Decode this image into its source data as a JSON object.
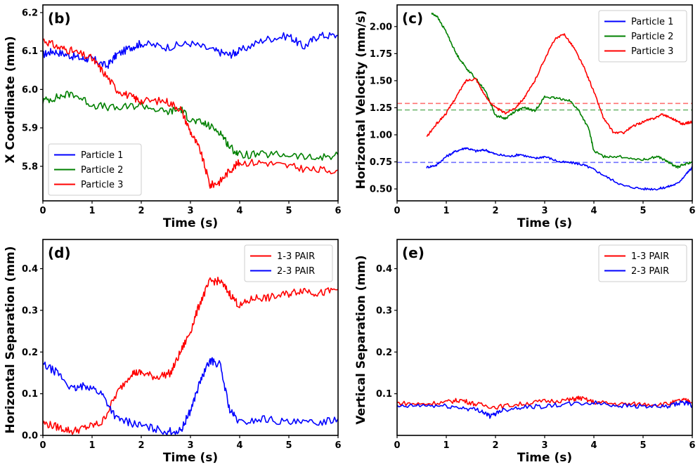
{
  "chart_data": [
    {
      "type": "line",
      "panel_label": "(b)",
      "xlabel": "Time (s)",
      "ylabel": "X Coordinate (mm)",
      "xlim": [
        0,
        6
      ],
      "ylim": [
        5.71,
        6.22
      ],
      "xticks": [
        "0",
        "1",
        "2",
        "3",
        "4",
        "5",
        "6"
      ],
      "yticks": [
        "5.8",
        "5.9",
        "6.0",
        "6.1",
        "6.2"
      ],
      "legend_position": "lower-left",
      "series": [
        {
          "name": "Particle 1",
          "color": "#0000ff",
          "x": [
            0,
            0.2,
            0.5,
            0.8,
            1.0,
            1.3,
            1.5,
            1.8,
            2.0,
            2.5,
            3.0,
            3.5,
            3.8,
            4.0,
            4.5,
            5.0,
            5.3,
            5.6,
            6.0
          ],
          "y": [
            6.09,
            6.1,
            6.09,
            6.08,
            6.08,
            6.06,
            6.09,
            6.11,
            6.12,
            6.11,
            6.12,
            6.1,
            6.09,
            6.1,
            6.13,
            6.14,
            6.11,
            6.14,
            6.14
          ]
        },
        {
          "name": "Particle 2",
          "color": "#008000",
          "x": [
            0,
            0.3,
            0.6,
            1.0,
            1.5,
            2.0,
            2.5,
            2.8,
            3.0,
            3.3,
            3.6,
            3.8,
            4.0,
            4.5,
            5.0,
            5.5,
            6.0
          ],
          "y": [
            5.97,
            5.98,
            5.99,
            5.96,
            5.95,
            5.96,
            5.94,
            5.95,
            5.92,
            5.91,
            5.89,
            5.85,
            5.83,
            5.83,
            5.83,
            5.82,
            5.83
          ]
        },
        {
          "name": "Particle 3",
          "color": "#ff0000",
          "x": [
            0,
            0.3,
            0.6,
            1.0,
            1.2,
            1.5,
            1.8,
            2.0,
            2.5,
            2.8,
            3.0,
            3.2,
            3.4,
            3.6,
            3.8,
            4.0,
            4.5,
            5.0,
            5.5,
            6.0
          ],
          "y": [
            6.13,
            6.11,
            6.1,
            6.08,
            6.05,
            6.0,
            5.98,
            5.97,
            5.97,
            5.95,
            5.89,
            5.84,
            5.75,
            5.76,
            5.79,
            5.81,
            5.81,
            5.8,
            5.79,
            5.79
          ]
        }
      ]
    },
    {
      "type": "line",
      "panel_label": "(c)",
      "xlabel": "Time (s)",
      "ylabel": "Horizontal Velocity (mm/s)",
      "xlim": [
        0,
        6
      ],
      "ylim": [
        0.39,
        2.2
      ],
      "xticks": [
        "0",
        "1",
        "2",
        "3",
        "4",
        "5",
        "6"
      ],
      "yticks": [
        "0.50",
        "0.75",
        "1.00",
        "1.25",
        "1.50",
        "1.75",
        "2.00"
      ],
      "legend_position": "top-right",
      "series": [
        {
          "name": "Particle 1",
          "color": "#0000ff",
          "x": [
            0.6,
            0.8,
            1.0,
            1.2,
            1.4,
            1.6,
            1.8,
            2.0,
            2.3,
            2.5,
            2.8,
            3.0,
            3.3,
            3.6,
            3.8,
            4.0,
            4.3,
            4.6,
            5.0,
            5.3,
            5.5,
            5.7,
            5.9,
            6.0
          ],
          "y": [
            0.7,
            0.72,
            0.8,
            0.85,
            0.88,
            0.85,
            0.86,
            0.82,
            0.8,
            0.82,
            0.78,
            0.8,
            0.75,
            0.74,
            0.72,
            0.68,
            0.6,
            0.53,
            0.5,
            0.5,
            0.52,
            0.55,
            0.65,
            0.7
          ]
        },
        {
          "name": "Particle 2",
          "color": "#008000",
          "x": [
            0.7,
            0.8,
            1.0,
            1.2,
            1.4,
            1.6,
            1.8,
            2.0,
            2.2,
            2.4,
            2.6,
            2.8,
            3.0,
            3.2,
            3.5,
            3.7,
            3.9,
            4.0,
            4.2,
            4.5,
            5.0,
            5.3,
            5.5,
            5.7,
            5.8,
            6.0
          ],
          "y": [
            2.12,
            2.1,
            1.95,
            1.75,
            1.62,
            1.52,
            1.4,
            1.18,
            1.15,
            1.22,
            1.25,
            1.22,
            1.35,
            1.34,
            1.32,
            1.22,
            1.05,
            0.85,
            0.8,
            0.8,
            0.77,
            0.8,
            0.75,
            0.7,
            0.72,
            0.75
          ]
        },
        {
          "name": "Particle 3",
          "color": "#ff0000",
          "x": [
            0.6,
            0.8,
            1.0,
            1.2,
            1.4,
            1.6,
            1.8,
            2.0,
            2.2,
            2.4,
            2.6,
            2.8,
            3.0,
            3.2,
            3.4,
            3.6,
            3.8,
            4.0,
            4.2,
            4.4,
            4.6,
            4.8,
            5.0,
            5.2,
            5.4,
            5.6,
            5.8,
            6.0
          ],
          "y": [
            0.98,
            1.1,
            1.2,
            1.35,
            1.5,
            1.52,
            1.35,
            1.25,
            1.2,
            1.25,
            1.35,
            1.5,
            1.7,
            1.88,
            1.93,
            1.8,
            1.62,
            1.4,
            1.15,
            1.02,
            1.02,
            1.08,
            1.12,
            1.15,
            1.19,
            1.15,
            1.1,
            1.12
          ]
        }
      ],
      "reference_lines": [
        {
          "y": 1.29,
          "color": "#ff0000",
          "style": "dashed"
        },
        {
          "y": 1.23,
          "color": "#008000",
          "style": "dashed"
        },
        {
          "y": 0.745,
          "color": "#0000ff",
          "style": "dashed"
        }
      ]
    },
    {
      "type": "line",
      "panel_label": "(d)",
      "xlabel": "Time (s)",
      "ylabel": "Horizontal Separation (mm)",
      "xlim": [
        0,
        6
      ],
      "ylim": [
        0,
        0.47
      ],
      "xticks": [
        "0",
        "1",
        "2",
        "3",
        "4",
        "5",
        "6"
      ],
      "yticks": [
        "0.0",
        "0.1",
        "0.2",
        "0.3",
        "0.4"
      ],
      "legend_position": "top-right",
      "series": [
        {
          "name": "1-3 PAIR",
          "color": "#ff0000",
          "x": [
            0,
            0.3,
            0.6,
            0.9,
            1.2,
            1.5,
            1.8,
            2.0,
            2.3,
            2.6,
            2.8,
            3.0,
            3.2,
            3.4,
            3.6,
            3.8,
            4.0,
            4.3,
            4.6,
            5.0,
            5.3,
            5.6,
            6.0
          ],
          "y": [
            0.03,
            0.02,
            0.01,
            0.02,
            0.03,
            0.1,
            0.15,
            0.15,
            0.14,
            0.15,
            0.2,
            0.25,
            0.32,
            0.37,
            0.37,
            0.34,
            0.31,
            0.33,
            0.33,
            0.34,
            0.35,
            0.34,
            0.35
          ]
        },
        {
          "name": "2-3 PAIR",
          "color": "#0000ff",
          "x": [
            0,
            0.3,
            0.6,
            0.9,
            1.2,
            1.5,
            1.8,
            2.1,
            2.5,
            2.8,
            3.0,
            3.2,
            3.4,
            3.6,
            3.8,
            4.0,
            4.5,
            5.0,
            5.5,
            6.0
          ],
          "y": [
            0.17,
            0.15,
            0.11,
            0.12,
            0.1,
            0.04,
            0.03,
            0.02,
            0.01,
            0.01,
            0.06,
            0.13,
            0.18,
            0.17,
            0.06,
            0.03,
            0.04,
            0.03,
            0.03,
            0.04
          ]
        }
      ]
    },
    {
      "type": "line",
      "panel_label": "(e)",
      "xlabel": "Time (s)",
      "ylabel": "Vertical Separation (mm)",
      "xlim": [
        0,
        6
      ],
      "ylim": [
        0,
        0.47
      ],
      "xticks": [
        "0",
        "1",
        "2",
        "3",
        "4",
        "5",
        "6"
      ],
      "yticks": [
        "0.1",
        "0.2",
        "0.3",
        "0.4"
      ],
      "legend_position": "top-right",
      "series": [
        {
          "name": "1-3 PAIR",
          "color": "#ff0000",
          "x": [
            0,
            0.5,
            1.0,
            1.3,
            1.6,
            2.0,
            2.5,
            3.0,
            3.5,
            3.7,
            4.0,
            4.5,
            5.0,
            5.5,
            5.8,
            6.0
          ],
          "y": [
            0.078,
            0.075,
            0.08,
            0.085,
            0.075,
            0.068,
            0.075,
            0.082,
            0.085,
            0.09,
            0.08,
            0.075,
            0.075,
            0.075,
            0.085,
            0.08
          ]
        },
        {
          "name": "2-3 PAIR",
          "color": "#0000ff",
          "x": [
            0,
            0.5,
            1.0,
            1.4,
            1.7,
            1.9,
            2.1,
            2.5,
            3.0,
            3.5,
            4.0,
            4.5,
            5.0,
            5.5,
            5.8,
            6.0
          ],
          "y": [
            0.068,
            0.072,
            0.07,
            0.065,
            0.06,
            0.045,
            0.06,
            0.068,
            0.07,
            0.075,
            0.078,
            0.072,
            0.07,
            0.068,
            0.08,
            0.072
          ]
        }
      ]
    }
  ]
}
